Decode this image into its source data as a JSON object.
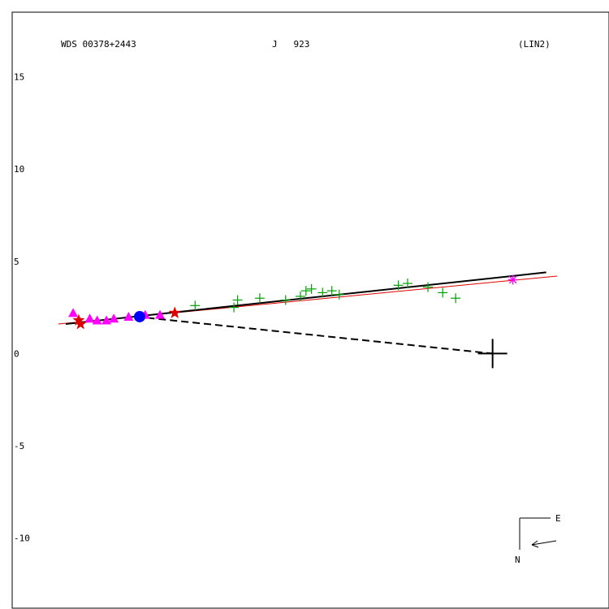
{
  "header": {
    "wds_id": "WDS 00378+2443",
    "discoverer": "J   923",
    "orbit_grade": "(LIN2)"
  },
  "compass": {
    "east_label": "E",
    "north_label": "N"
  },
  "chart_data": {
    "type": "scatter",
    "title": "",
    "xlabel": "",
    "ylabel": "",
    "xlim": [
      -14.5,
      17.8
    ],
    "ylim": [
      -13.8,
      18.5
    ],
    "y_ticks": [
      15,
      10,
      5,
      0,
      -5,
      -10
    ],
    "grid": false,
    "colors": {
      "frame": "#000000",
      "linear_fit": "#000000",
      "reference_line": "#e00000",
      "micrometer": "#00a000",
      "speckle": "#ff00ff",
      "interferometry": "#0000ff",
      "measure_marker": "#dd0000",
      "last_point": "#ff00ff",
      "primary": "#000000"
    },
    "linear_fit": {
      "from": [
        -11.6,
        1.6
      ],
      "to": [
        14.4,
        4.4
      ]
    },
    "reference_line": {
      "from": [
        -12.0,
        1.6
      ],
      "to": [
        15.0,
        4.2
      ]
    },
    "dashed_link": {
      "from": [
        -7.8,
        2.0
      ],
      "to": [
        11.5,
        0.0
      ]
    },
    "primary_star": {
      "x": 11.5,
      "y": 0.0
    },
    "series": [
      {
        "marker": "plus",
        "color_key": "micrometer",
        "points": [
          [
            -4.6,
            2.6
          ],
          [
            -2.5,
            2.5
          ],
          [
            -2.3,
            2.9
          ],
          [
            -1.1,
            3.0
          ],
          [
            0.3,
            2.9
          ],
          [
            1.1,
            3.1
          ],
          [
            1.4,
            3.4
          ],
          [
            1.7,
            3.5
          ],
          [
            2.3,
            3.3
          ],
          [
            2.8,
            3.4
          ],
          [
            3.2,
            3.2
          ],
          [
            6.4,
            3.7
          ],
          [
            6.9,
            3.8
          ],
          [
            8.0,
            3.6
          ],
          [
            8.8,
            3.3
          ],
          [
            9.5,
            3.0
          ]
        ]
      },
      {
        "marker": "triangle",
        "color_key": "speckle",
        "points": [
          [
            -11.2,
            2.2
          ],
          [
            -10.3,
            1.9
          ],
          [
            -9.9,
            1.8
          ],
          [
            -9.4,
            1.8
          ],
          [
            -9.0,
            1.9
          ],
          [
            -8.2,
            2.0
          ],
          [
            -7.3,
            2.1
          ],
          [
            -6.5,
            2.1
          ]
        ]
      },
      {
        "marker": "circle",
        "color_key": "interferometry",
        "points": [
          [
            -7.6,
            2.0
          ]
        ]
      },
      {
        "marker": "star",
        "color_key": "measure_marker",
        "points": [
          [
            -10.9,
            1.8
          ],
          [
            -10.8,
            1.6
          ],
          [
            -5.7,
            2.2
          ]
        ]
      },
      {
        "marker": "asterisk",
        "color_key": "last_point",
        "points": [
          [
            12.6,
            4.0
          ]
        ]
      }
    ]
  }
}
